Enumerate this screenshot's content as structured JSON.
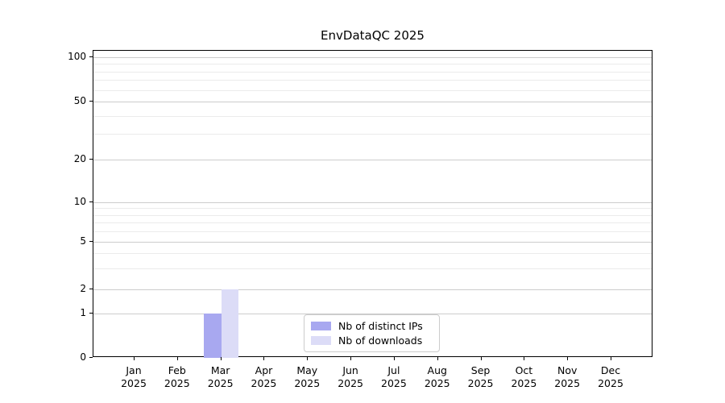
{
  "title": "EnvDataQC 2025",
  "colors": {
    "distinct_ips": "#a8a8f0",
    "downloads": "#dcdcf7"
  },
  "y_axis": {
    "major_ticks": [
      0,
      1,
      2,
      5,
      10,
      20,
      50,
      100
    ],
    "minor_ticks": [
      3,
      4,
      6,
      7,
      8,
      9,
      30,
      40,
      60,
      70,
      80,
      90
    ]
  },
  "x_axis": {
    "months": [
      "Jan",
      "Feb",
      "Mar",
      "Apr",
      "May",
      "Jun",
      "Jul",
      "Aug",
      "Sep",
      "Oct",
      "Nov",
      "Dec"
    ],
    "year": "2025"
  },
  "legend": [
    {
      "label": "Nb of distinct IPs",
      "color": "#a8a8f0"
    },
    {
      "label": "Nb of downloads",
      "color": "#dcdcf7"
    }
  ],
  "chart_data": {
    "type": "bar",
    "title": "EnvDataQC 2025",
    "categories": [
      "Jan 2025",
      "Feb 2025",
      "Mar 2025",
      "Apr 2025",
      "May 2025",
      "Jun 2025",
      "Jul 2025",
      "Aug 2025",
      "Sep 2025",
      "Oct 2025",
      "Nov 2025",
      "Dec 2025"
    ],
    "series": [
      {
        "name": "Nb of distinct IPs",
        "color": "#a8a8f0",
        "values": [
          0,
          0,
          1,
          0,
          0,
          0,
          0,
          0,
          0,
          0,
          0,
          0
        ]
      },
      {
        "name": "Nb of downloads",
        "color": "#dcdcf7",
        "values": [
          0,
          0,
          2,
          0,
          0,
          0,
          0,
          0,
          0,
          0,
          0,
          0
        ]
      }
    ],
    "xlabel": "",
    "ylabel": "",
    "y_scale": "log-like",
    "y_ticks": [
      0,
      1,
      2,
      5,
      10,
      20,
      50,
      100
    ],
    "grid": "horizontal, major + faint minor",
    "legend_position": "lower center inside plot"
  }
}
